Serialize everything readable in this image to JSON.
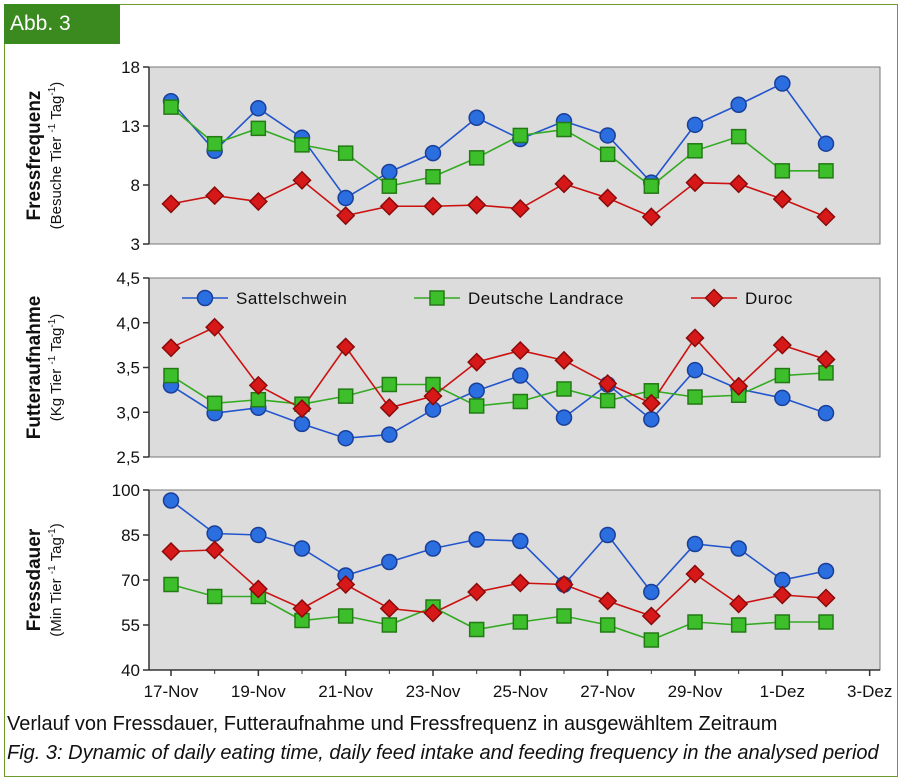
{
  "figure_tag": "Abb. 3",
  "caption_de": "Verlauf von Fressdauer, Futteraufnahme und Fressfrequenz in ausgewähltem Zeitraum",
  "caption_en": "Fig. 3: Dynamic of daily eating time, daily feed intake and feeding frequency in the analysed period",
  "colors": {
    "tag_bg": "#3a8a1f",
    "frame": "#6f9b2b",
    "plot_bg": "#dcdcdc",
    "Sattelschwein": "#2255cc",
    "Deutsche Landrace": "#33aa22",
    "Duroc": "#cc1111"
  },
  "chart_data": [
    {
      "type": "line",
      "ylabel_main": "Fressfrequenz",
      "ylabel_unit_prefix": "(Besuche Tier",
      "ylabel_unit_mid": "Tag",
      "ylabel_unit_suffix": ")",
      "ylim": [
        3,
        18
      ],
      "yticks": [
        "3",
        "8",
        "13",
        "18"
      ],
      "ytick_values": [
        3,
        8,
        13,
        18
      ],
      "x_day_offset": [
        0,
        1,
        2,
        3,
        4,
        5,
        6,
        7,
        8,
        9,
        10,
        11,
        12,
        13,
        14,
        15
      ],
      "series": [
        {
          "name": "Sattelschwein",
          "marker": "circle",
          "values": [
            15.1,
            10.9,
            14.5,
            12.0,
            6.9,
            9.1,
            10.7,
            13.7,
            11.9,
            13.4,
            12.2,
            8.2,
            13.1,
            14.8,
            16.6,
            11.5
          ]
        },
        {
          "name": "Deutsche Landrace",
          "marker": "square",
          "values": [
            14.6,
            11.5,
            12.8,
            11.4,
            10.7,
            7.9,
            8.7,
            10.3,
            12.2,
            12.7,
            10.6,
            7.9,
            10.9,
            12.1,
            9.2,
            9.2
          ]
        },
        {
          "name": "Duroc",
          "marker": "diamond",
          "values": [
            6.4,
            7.1,
            6.6,
            8.4,
            5.4,
            6.2,
            6.2,
            6.3,
            6.0,
            8.1,
            6.9,
            5.3,
            8.2,
            8.1,
            6.8,
            5.3
          ]
        }
      ]
    },
    {
      "type": "line",
      "ylabel_main": "Futteraufnahme",
      "ylabel_unit_prefix": "(Kg Tier",
      "ylabel_unit_mid": "Tag",
      "ylabel_unit_suffix": ")",
      "ylim": [
        2.5,
        4.5
      ],
      "yticks": [
        "2,5",
        "3,0",
        "3,5",
        "4,0",
        "4,5"
      ],
      "ytick_values": [
        2.5,
        3.0,
        3.5,
        4.0,
        4.5
      ],
      "legend": [
        "Sattelschwein",
        "Deutsche Landrace",
        "Duroc"
      ],
      "legend_position": "top",
      "series": [
        {
          "name": "Sattelschwein",
          "marker": "circle",
          "values": [
            3.3,
            2.99,
            3.05,
            2.87,
            2.71,
            2.75,
            3.03,
            3.24,
            3.41,
            2.94,
            3.31,
            2.92,
            3.47,
            3.26,
            3.16,
            2.99
          ]
        },
        {
          "name": "Deutsche Landrace",
          "marker": "square",
          "values": [
            3.41,
            3.1,
            3.14,
            3.09,
            3.18,
            3.31,
            3.31,
            3.07,
            3.12,
            3.26,
            3.13,
            3.24,
            3.17,
            3.19,
            3.41,
            3.44
          ]
        },
        {
          "name": "Duroc",
          "marker": "diamond",
          "values": [
            3.72,
            3.95,
            3.3,
            3.04,
            3.73,
            3.05,
            3.18,
            3.56,
            3.69,
            3.58,
            3.32,
            3.1,
            3.83,
            3.29,
            3.75,
            3.59
          ]
        }
      ]
    },
    {
      "type": "line",
      "ylabel_main": "Fressdauer",
      "ylabel_unit_prefix": "(Min Tier",
      "ylabel_unit_mid": "Tag",
      "ylabel_unit_suffix": ")",
      "ylim": [
        40,
        100
      ],
      "yticks": [
        "40",
        "55",
        "70",
        "85",
        "100"
      ],
      "ytick_values": [
        40,
        55,
        70,
        85,
        100
      ],
      "xticks": [
        "17-Nov",
        "19-Nov",
        "21-Nov",
        "23-Nov",
        "25-Nov",
        "27-Nov",
        "29-Nov",
        "1-Dez",
        "3-Dez"
      ],
      "series": [
        {
          "name": "Sattelschwein",
          "marker": "circle",
          "values": [
            96.5,
            85.5,
            85.0,
            80.5,
            71.5,
            76.0,
            80.5,
            83.5,
            83.0,
            68.5,
            85.0,
            66.0,
            82.0,
            80.5,
            70.0,
            73.0
          ]
        },
        {
          "name": "Deutsche Landrace",
          "marker": "square",
          "values": [
            68.5,
            64.5,
            64.5,
            56.5,
            58.0,
            55.0,
            61.0,
            53.5,
            56.0,
            58.0,
            55.0,
            50.0,
            56.0,
            55.0,
            56.0,
            56.0
          ]
        },
        {
          "name": "Duroc",
          "marker": "diamond",
          "values": [
            79.5,
            80.0,
            67.0,
            60.5,
            68.5,
            60.5,
            59.0,
            66.0,
            69.0,
            68.5,
            63.0,
            58.0,
            72.0,
            62.0,
            65.0,
            64.0
          ]
        }
      ]
    }
  ]
}
